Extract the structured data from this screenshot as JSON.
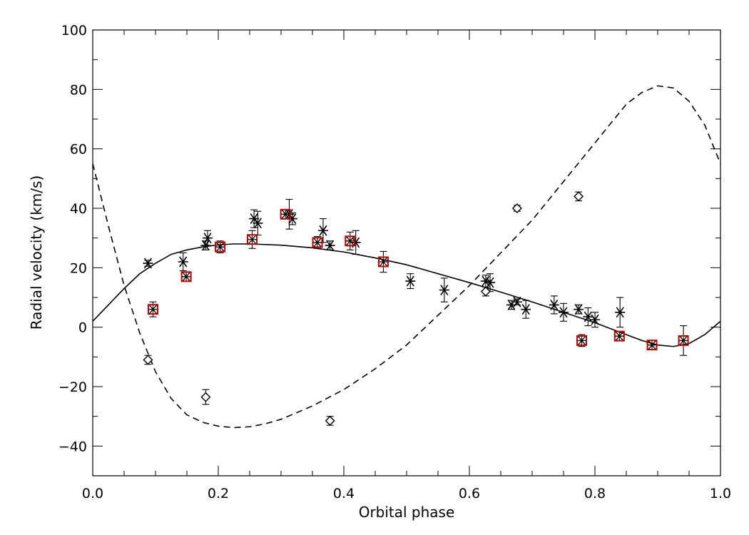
{
  "chart_data": {
    "type": "scatter",
    "xlabel": "Orbital phase",
    "ylabel": "Radial velocity (km/s)",
    "xlim": [
      0.0,
      1.0
    ],
    "ylim": [
      -50,
      100
    ],
    "x_ticks": [
      "0.0",
      "0.2",
      "0.4",
      "0.6",
      "0.8",
      "1.0"
    ],
    "y_ticks": [
      "−40",
      "−20",
      "0",
      "20",
      "40",
      "60",
      "80",
      "100"
    ],
    "grid": false,
    "series": [
      {
        "marker": "asterisk",
        "color": "#000000",
        "points": [
          {
            "x": 0.088,
            "y": 21.5,
            "err": 1.0
          },
          {
            "x": 0.144,
            "y": 22.0,
            "err": 3.0
          },
          {
            "x": 0.18,
            "y": 27.5,
            "err": 1.5
          },
          {
            "x": 0.183,
            "y": 30.0,
            "err": 2.5
          },
          {
            "x": 0.257,
            "y": 36.5,
            "err": 3.0
          },
          {
            "x": 0.263,
            "y": 35.0,
            "err": 4.0
          },
          {
            "x": 0.313,
            "y": 38.0,
            "err": 5.0
          },
          {
            "x": 0.318,
            "y": 36.5,
            "err": 2.0
          },
          {
            "x": 0.367,
            "y": 32.5,
            "err": 4.0
          },
          {
            "x": 0.378,
            "y": 27.5,
            "err": 1.5
          },
          {
            "x": 0.419,
            "y": 28.5,
            "err": 4.0
          },
          {
            "x": 0.506,
            "y": 15.5,
            "err": 2.5
          },
          {
            "x": 0.56,
            "y": 12.5,
            "err": 4.0
          },
          {
            "x": 0.626,
            "y": 15.5,
            "err": 2.0
          },
          {
            "x": 0.633,
            "y": 15.0,
            "err": 3.0
          },
          {
            "x": 0.667,
            "y": 7.5,
            "err": 1.5
          },
          {
            "x": 0.676,
            "y": 8.5,
            "err": 1.0
          },
          {
            "x": 0.69,
            "y": 6.0,
            "err": 3.0
          },
          {
            "x": 0.735,
            "y": 7.5,
            "err": 3.0
          },
          {
            "x": 0.75,
            "y": 5.0,
            "err": 3.0
          },
          {
            "x": 0.774,
            "y": 6.0,
            "err": 1.5
          },
          {
            "x": 0.789,
            "y": 3.5,
            "err": 3.0
          },
          {
            "x": 0.8,
            "y": 2.5,
            "err": 2.5
          },
          {
            "x": 0.84,
            "y": 5.0,
            "err": 5.0
          }
        ]
      },
      {
        "marker": "boxed-asterisk",
        "color": "#c00000",
        "points": [
          {
            "x": 0.096,
            "y": 6.0,
            "err": 2.5
          },
          {
            "x": 0.149,
            "y": 17.0,
            "err": 1.5
          },
          {
            "x": 0.203,
            "y": 27.0,
            "err": 2.0
          },
          {
            "x": 0.254,
            "y": 29.5,
            "err": 3.0
          },
          {
            "x": 0.307,
            "y": 38.0,
            "err": 1.5
          },
          {
            "x": 0.358,
            "y": 28.5,
            "err": 2.0
          },
          {
            "x": 0.41,
            "y": 29.0,
            "err": 3.0
          },
          {
            "x": 0.463,
            "y": 22.0,
            "err": 3.5
          },
          {
            "x": 0.779,
            "y": -4.5,
            "err": 2.0
          },
          {
            "x": 0.839,
            "y": -3.0,
            "err": 1.5
          },
          {
            "x": 0.891,
            "y": -6.0,
            "err": 1.5
          },
          {
            "x": 0.941,
            "y": -4.5,
            "err": 5.0
          }
        ]
      },
      {
        "marker": "diamond",
        "color": "#000000",
        "points": [
          {
            "x": 0.088,
            "y": -11.0,
            "err": 1.5
          },
          {
            "x": 0.18,
            "y": -23.5,
            "err": 2.5
          },
          {
            "x": 0.378,
            "y": -31.5,
            "err": 1.5
          },
          {
            "x": 0.626,
            "y": 12.0,
            "err": 1.5
          },
          {
            "x": 0.676,
            "y": 40.0,
            "err": 1.0
          },
          {
            "x": 0.774,
            "y": 44.0,
            "err": 1.5
          }
        ]
      }
    ],
    "curves": [
      {
        "style": "solid",
        "x": [
          0.0,
          0.025,
          0.05,
          0.075,
          0.1,
          0.125,
          0.15,
          0.175,
          0.2,
          0.225,
          0.25,
          0.3,
          0.35,
          0.4,
          0.45,
          0.5,
          0.55,
          0.6,
          0.65,
          0.7,
          0.75,
          0.8,
          0.85,
          0.875,
          0.9,
          0.925,
          0.95,
          0.975,
          1.0
        ],
        "y": [
          2.0,
          7.5,
          13.0,
          18.0,
          21.5,
          24.5,
          26.0,
          27.0,
          27.7,
          28.0,
          28.0,
          27.6,
          26.7,
          25.3,
          23.3,
          21.0,
          18.0,
          15.0,
          11.8,
          8.5,
          5.0,
          1.5,
          -2.5,
          -4.5,
          -6.0,
          -6.5,
          -5.5,
          -2.5,
          2.0
        ]
      },
      {
        "style": "dashed",
        "x": [
          0.0,
          0.025,
          0.05,
          0.075,
          0.1,
          0.125,
          0.15,
          0.175,
          0.2,
          0.225,
          0.25,
          0.275,
          0.3,
          0.35,
          0.4,
          0.45,
          0.5,
          0.55,
          0.6,
          0.65,
          0.7,
          0.75,
          0.8,
          0.85,
          0.875,
          0.9,
          0.925,
          0.95,
          0.975,
          1.0
        ],
        "y": [
          55.0,
          34.0,
          14.0,
          -2.0,
          -15.0,
          -24.0,
          -29.5,
          -32.0,
          -33.3,
          -33.8,
          -33.5,
          -32.5,
          -31.0,
          -26.5,
          -21.0,
          -14.0,
          -6.0,
          4.0,
          14.0,
          25.0,
          36.0,
          49.0,
          62.0,
          75.0,
          79.0,
          81.2,
          80.5,
          76.0,
          68.0,
          55.0
        ]
      }
    ]
  }
}
